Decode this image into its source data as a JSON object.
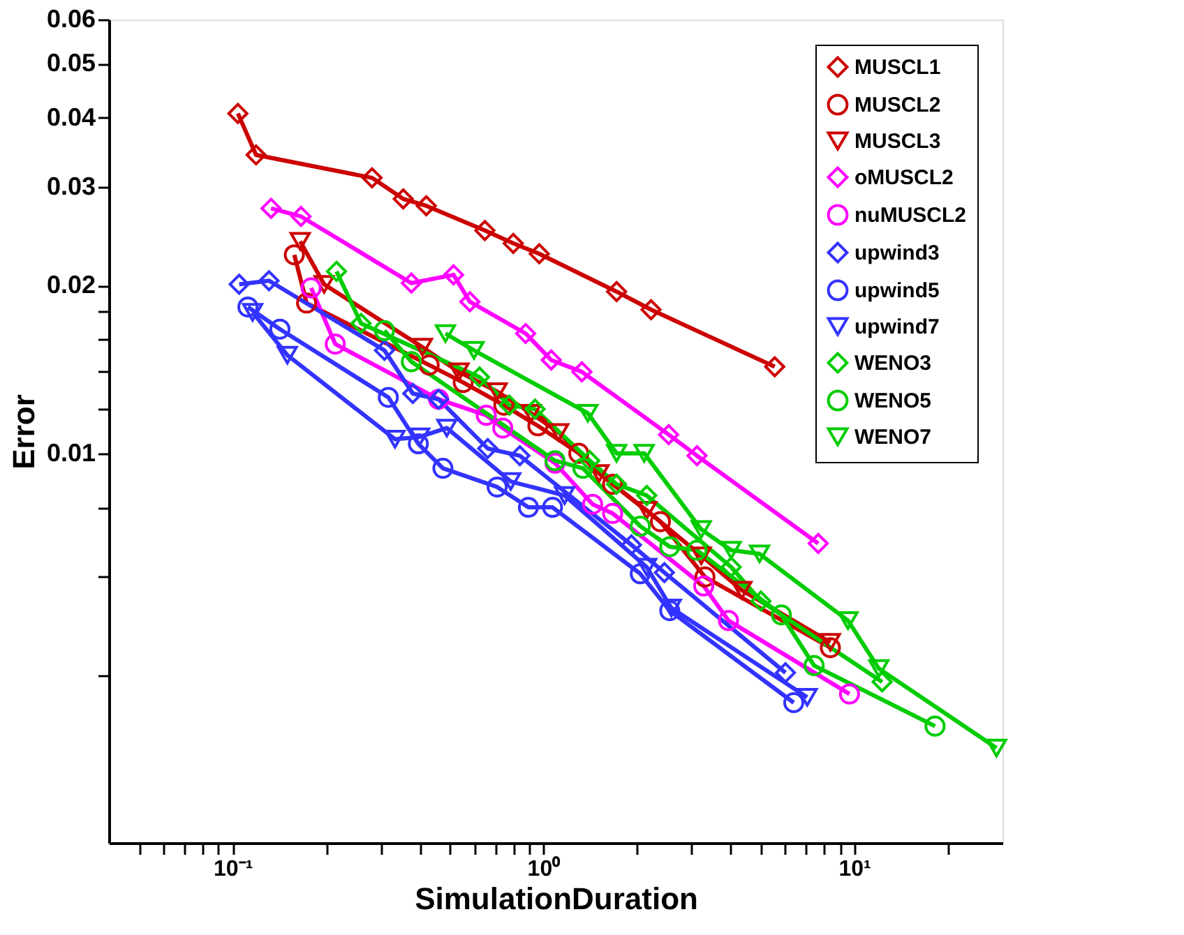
{
  "chart_data": {
    "type": "line",
    "xlabel": "SimulationDuration",
    "ylabel": "Error",
    "log": "xy",
    "xlim": [
      0.04,
      30
    ],
    "ylim": [
      0.002,
      0.06
    ],
    "xticks": [
      {
        "value": 0.05,
        "label": null
      },
      {
        "value": 0.06,
        "label": null
      },
      {
        "value": 0.07,
        "label": null
      },
      {
        "value": 0.08,
        "label": null
      },
      {
        "value": 0.09,
        "label": null
      },
      {
        "value": 0.1,
        "label": "10⁻¹"
      },
      {
        "value": 0.2,
        "label": null
      },
      {
        "value": 0.3,
        "label": null
      },
      {
        "value": 0.4,
        "label": null
      },
      {
        "value": 0.5,
        "label": null
      },
      {
        "value": 0.6,
        "label": null
      },
      {
        "value": 0.7,
        "label": null
      },
      {
        "value": 0.8,
        "label": null
      },
      {
        "value": 0.9,
        "label": null
      },
      {
        "value": 1,
        "label": "10⁰"
      },
      {
        "value": 2,
        "label": null
      },
      {
        "value": 3,
        "label": null
      },
      {
        "value": 4,
        "label": null
      },
      {
        "value": 5,
        "label": null
      },
      {
        "value": 6,
        "label": null
      },
      {
        "value": 7,
        "label": null
      },
      {
        "value": 8,
        "label": null
      },
      {
        "value": 9,
        "label": null
      },
      {
        "value": 10,
        "label": "10¹"
      },
      {
        "value": 20,
        "label": null
      }
    ],
    "yticks": [
      {
        "value": 0.004,
        "label": null
      },
      {
        "value": 0.006,
        "label": null
      },
      {
        "value": 0.008,
        "label": null
      },
      0.01,
      {
        "value": 0.012,
        "label": null
      },
      {
        "value": 0.014,
        "label": null
      },
      {
        "value": 0.016,
        "label": null
      },
      {
        "value": 0.018,
        "label": null
      },
      0.02,
      0.03,
      0.04,
      0.05,
      0.06
    ],
    "legend": "top right",
    "line_style": "solid",
    "series": [
      {
        "name": "MUSCL1",
        "color": "#cc0000",
        "marker": "diamond",
        "x": [
          0.104,
          0.119,
          0.281,
          0.354,
          0.42,
          0.648,
          0.8,
          0.97,
          1.72,
          2.22,
          5.55
        ],
        "values": [
          0.0407,
          0.0343,
          0.0312,
          0.0286,
          0.0278,
          0.0251,
          0.0238,
          0.0228,
          0.0195,
          0.0181,
          0.0143
        ]
      },
      {
        "name": "MUSCL2",
        "color": "#cc0000",
        "marker": "circle",
        "x": [
          0.158,
          0.173,
          0.429,
          0.552,
          0.746,
          0.96,
          1.3,
          1.67,
          2.38,
          3.31,
          8.38
        ],
        "values": [
          0.0227,
          0.0186,
          0.0144,
          0.0134,
          0.0122,
          0.0112,
          0.01,
          0.0088,
          0.00754,
          0.006,
          0.00448
        ]
      },
      {
        "name": "MUSCL3",
        "color": "#cc0000",
        "marker": "triangle",
        "x": [
          0.165,
          0.197,
          0.408,
          0.535,
          0.71,
          0.913,
          1.12,
          1.51,
          2.15,
          3.22,
          4.35,
          8.38
        ],
        "values": [
          0.024,
          0.0201,
          0.0155,
          0.014,
          0.0129,
          0.0118,
          0.0109,
          0.0092,
          0.0079,
          0.00655,
          0.00568,
          0.00458
        ]
      },
      {
        "name": "oMUSCL2",
        "color": "#ff00ff",
        "marker": "diamond",
        "x": [
          0.133,
          0.166,
          0.376,
          0.514,
          0.58,
          0.877,
          1.06,
          1.33,
          2.53,
          3.12,
          7.66
        ],
        "values": [
          0.0275,
          0.0266,
          0.0202,
          0.0209,
          0.0187,
          0.0164,
          0.0147,
          0.014,
          0.0108,
          0.0099,
          0.00689
        ]
      },
      {
        "name": "nuMUSCL2",
        "color": "#ff00ff",
        "marker": "circle",
        "x": [
          0.179,
          0.214,
          0.46,
          0.655,
          0.74,
          1.09,
          1.44,
          1.67,
          3.28,
          3.94,
          9.66
        ],
        "values": [
          0.0198,
          0.0157,
          0.0125,
          0.0117,
          0.0111,
          0.0096,
          0.0081,
          0.0078,
          0.00578,
          0.00501,
          0.0037
        ]
      },
      {
        "name": "upwind3",
        "color": "#3333ff",
        "marker": "diamond",
        "x": [
          0.105,
          0.131,
          0.308,
          0.38,
          0.46,
          0.662,
          0.84,
          1.92,
          2.45,
          6.01
        ],
        "values": [
          0.0201,
          0.0204,
          0.0153,
          0.0128,
          0.0125,
          0.0102,
          0.0099,
          0.00685,
          0.00611,
          0.00404
        ]
      },
      {
        "name": "upwind5",
        "color": "#3333ff",
        "marker": "circle",
        "x": [
          0.112,
          0.142,
          0.317,
          0.396,
          0.475,
          0.71,
          0.895,
          1.07,
          2.05,
          2.55,
          6.39
        ],
        "values": [
          0.0183,
          0.0167,
          0.0126,
          0.0104,
          0.0094,
          0.0087,
          0.008,
          0.008,
          0.00608,
          0.00522,
          0.00357
        ]
      },
      {
        "name": "upwind7",
        "color": "#3333ff",
        "marker": "triangle",
        "x": [
          0.116,
          0.15,
          0.333,
          0.4,
          0.489,
          0.785,
          1.17,
          2.15,
          2.58,
          7.06
        ],
        "values": [
          0.0179,
          0.015,
          0.0106,
          0.0107,
          0.0111,
          0.0089,
          0.0084,
          0.00625,
          0.00528,
          0.00365
        ]
      },
      {
        "name": "WENO3",
        "color": "#00cc00",
        "marker": "diamond",
        "x": [
          0.216,
          0.259,
          0.623,
          0.777,
          0.94,
          1.41,
          1.72,
          2.15,
          4.02,
          5.01,
          12.3
        ],
        "values": [
          0.0212,
          0.0171,
          0.0137,
          0.0122,
          0.012,
          0.0097,
          0.0088,
          0.0084,
          0.00625,
          0.00543,
          0.00389
        ]
      },
      {
        "name": "WENO5",
        "color": "#00cc00",
        "marker": "circle",
        "x": [
          0.308,
          0.376,
          1.09,
          1.34,
          2.05,
          2.55,
          3.12,
          5.83,
          7.43,
          18.2
        ],
        "values": [
          0.0166,
          0.0146,
          0.0097,
          0.0094,
          0.0074,
          0.0068,
          0.0067,
          0.00513,
          0.00416,
          0.00324
        ]
      },
      {
        "name": "WENO7",
        "color": "#00cc00",
        "marker": "triangle",
        "x": [
          0.484,
          0.598,
          1.39,
          1.72,
          2.11,
          3.22,
          4.02,
          4.96,
          9.55,
          12.0,
          28.7
        ],
        "values": [
          0.0164,
          0.0153,
          0.0118,
          0.01,
          0.01,
          0.0073,
          0.0067,
          0.0066,
          0.00501,
          0.00411,
          0.00296
        ]
      }
    ]
  }
}
